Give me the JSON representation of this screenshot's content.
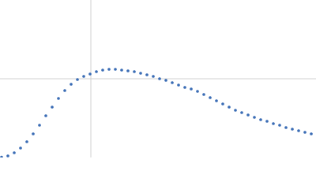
{
  "chart_data": {
    "type": "scatter",
    "x": [
      2,
      10,
      18,
      26,
      34,
      42,
      50,
      58,
      66,
      74,
      82,
      90,
      98,
      106,
      114,
      122,
      130,
      138,
      146,
      154,
      162,
      170,
      178,
      186,
      194,
      202,
      210,
      218,
      226,
      234,
      242,
      250,
      258,
      266,
      274,
      282,
      290,
      298,
      306,
      314,
      322,
      330,
      338,
      346,
      354,
      362,
      370,
      378,
      386,
      394
    ],
    "values": [
      0.5,
      2,
      6,
      12,
      20,
      30,
      41,
      53,
      64,
      75,
      85,
      93,
      99,
      103,
      106,
      109,
      111,
      112,
      112,
      111,
      110,
      109,
      107,
      105,
      103,
      100,
      98,
      95,
      92,
      89,
      87,
      84,
      80,
      76,
      72,
      68,
      64,
      60,
      57,
      54,
      51,
      48,
      46,
      43,
      41,
      38,
      36,
      34,
      32,
      30
    ],
    "color": "#3a6cb5",
    "xlim": [
      0,
      400
    ],
    "ylim": [
      0,
      200
    ],
    "xgrid": [
      115
    ],
    "ygrid": [
      100
    ]
  }
}
